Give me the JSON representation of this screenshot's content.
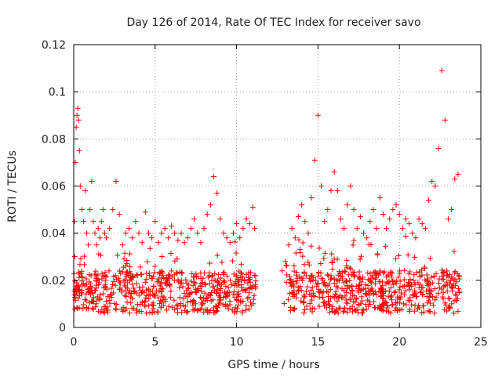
{
  "chart_data": {
    "type": "scatter",
    "title": "Day 126 of 2014, Rate Of TEC Index for receiver savo",
    "xlabel": "GPS time / hours",
    "ylabel": "ROTI / TECUs",
    "xlim": [
      0,
      25
    ],
    "ylim": [
      0,
      0.12
    ],
    "x_ticks": [
      "0",
      "5",
      "10",
      "15",
      "20",
      "25"
    ],
    "y_ticks": [
      "0",
      "0.02",
      "0.04",
      "0.06",
      "0.08",
      "0.1",
      "0.12"
    ],
    "grid": true,
    "marker": "plus",
    "color": "#ff0000",
    "series": [
      {
        "x": [
          0.05,
          0.1,
          0.15,
          0.2,
          0.25,
          0.3,
          0.35,
          0.4,
          0.5,
          0.6,
          0.7,
          0.8,
          0.9,
          1.0,
          1.1,
          1.2,
          1.3,
          1.4,
          1.5,
          1.6,
          1.7,
          1.8,
          1.9,
          2.0,
          2.2,
          2.4,
          2.6,
          2.8,
          3.0,
          3.2,
          3.4,
          3.6,
          3.8,
          4.0,
          4.2,
          4.4,
          4.6,
          4.8,
          5.0,
          5.2,
          5.4,
          5.6,
          5.8,
          6.0,
          6.2,
          6.4,
          6.6,
          6.8,
          7.0,
          7.2,
          7.4,
          7.6,
          7.8,
          8.0,
          8.2,
          8.4,
          8.6,
          8.8,
          9.0,
          9.2,
          9.4,
          9.6,
          9.8,
          10.0,
          10.2,
          10.4,
          10.6,
          10.8,
          11.0,
          11.1,
          12.8,
          13.0,
          13.2,
          13.4,
          13.6,
          13.8,
          14.0,
          14.2,
          14.4,
          14.6,
          14.8,
          15.0,
          15.2,
          15.4,
          15.6,
          15.8,
          16.0,
          16.2,
          16.4,
          16.6,
          16.8,
          17.0,
          17.2,
          17.4,
          17.6,
          17.8,
          18.0,
          18.2,
          18.4,
          18.6,
          18.8,
          19.0,
          19.2,
          19.4,
          19.6,
          19.8,
          20.0,
          20.2,
          20.4,
          20.6,
          20.8,
          21.0,
          21.2,
          21.4,
          21.6,
          21.8,
          22.0,
          22.2,
          22.4,
          22.6,
          22.8,
          23.0,
          23.2,
          23.4,
          23.6
        ],
        "y": [
          0.045,
          0.07,
          0.085,
          0.09,
          0.093,
          0.088,
          0.075,
          0.06,
          0.05,
          0.045,
          0.058,
          0.04,
          0.035,
          0.05,
          0.062,
          0.045,
          0.04,
          0.035,
          0.042,
          0.038,
          0.045,
          0.05,
          0.04,
          0.038,
          0.042,
          0.05,
          0.062,
          0.048,
          0.035,
          0.04,
          0.042,
          0.038,
          0.045,
          0.04,
          0.036,
          0.049,
          0.04,
          0.038,
          0.045,
          0.036,
          0.04,
          0.042,
          0.038,
          0.043,
          0.04,
          0.037,
          0.04,
          0.036,
          0.038,
          0.042,
          0.046,
          0.04,
          0.036,
          0.042,
          0.048,
          0.052,
          0.064,
          0.057,
          0.046,
          0.04,
          0.038,
          0.036,
          0.04,
          0.044,
          0.038,
          0.042,
          0.046,
          0.044,
          0.051,
          0.042,
          0.024,
          0.028,
          0.035,
          0.042,
          0.038,
          0.047,
          0.052,
          0.045,
          0.04,
          0.055,
          0.071,
          0.09,
          0.06,
          0.045,
          0.05,
          0.058,
          0.066,
          0.058,
          0.046,
          0.042,
          0.052,
          0.06,
          0.05,
          0.042,
          0.047,
          0.04,
          0.038,
          0.045,
          0.05,
          0.042,
          0.055,
          0.048,
          0.042,
          0.046,
          0.05,
          0.052,
          0.048,
          0.042,
          0.046,
          0.044,
          0.04,
          0.038,
          0.046,
          0.044,
          0.042,
          0.054,
          0.062,
          0.06,
          0.076,
          0.109,
          0.088,
          0.046,
          0.05,
          0.063,
          0.065
        ]
      }
    ]
  }
}
